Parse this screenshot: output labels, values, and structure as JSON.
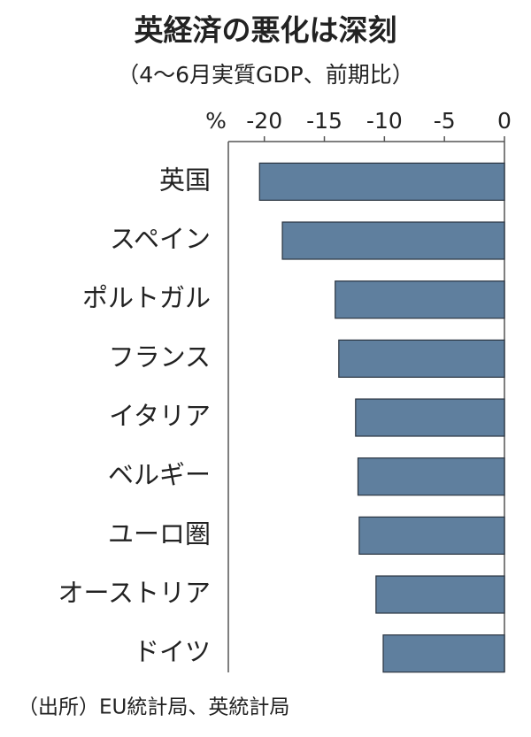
{
  "chart_data": {
    "type": "barh",
    "title": "英経済の悪化は深刻",
    "subtitle": "（4〜6月実質GDP、前期比）",
    "xlabel": "%",
    "source": "（出所）EU統計局、英統計局",
    "categories": [
      "英国",
      "スペイン",
      "ポルトガル",
      "フランス",
      "イタリア",
      "ベルギー",
      "ユーロ圏",
      "オーストリア",
      "ドイツ"
    ],
    "values": [
      -20.4,
      -18.5,
      -14.1,
      -13.8,
      -12.4,
      -12.2,
      -12.1,
      -10.7,
      -10.1
    ],
    "color": "#5f7f9e",
    "xlim": [
      -23,
      0
    ],
    "xticks": [
      -20,
      -15,
      -10,
      -5,
      0
    ]
  }
}
